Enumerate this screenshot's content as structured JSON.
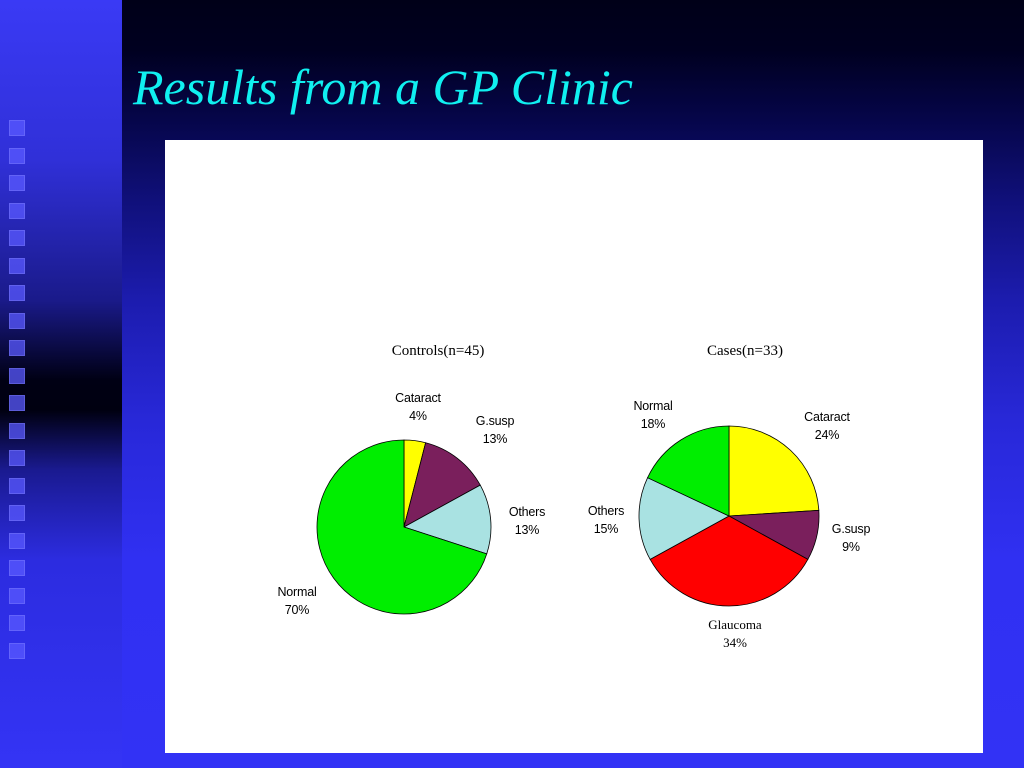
{
  "slide": {
    "title": "Results from a GP Clinic",
    "colors": {
      "title": "#10f0f0",
      "background": "#3232f5",
      "panel": "#ffffff"
    }
  },
  "chart_data": [
    {
      "type": "pie",
      "title": "Controls(n=45)",
      "slices": [
        {
          "label": "Cataract",
          "value": 4,
          "display": "4%",
          "color": "#ffff00"
        },
        {
          "label": "G.susp",
          "value": 13,
          "display": "13%",
          "color": "#7a1f5c"
        },
        {
          "label": "Others",
          "value": 13,
          "display": "13%",
          "color": "#a9e2e2"
        },
        {
          "label": "Normal",
          "value": 70,
          "display": "70%",
          "color": "#00ee00"
        }
      ]
    },
    {
      "type": "pie",
      "title": "Cases(n=33)",
      "slices": [
        {
          "label": "Cataract",
          "value": 24,
          "display": "24%",
          "color": "#ffff00"
        },
        {
          "label": "G.susp",
          "value": 9,
          "display": "9%",
          "color": "#7a1f5c"
        },
        {
          "label": "Glaucoma",
          "value": 34,
          "display": "34%",
          "color": "#ff0000"
        },
        {
          "label": "Others",
          "value": 15,
          "display": "15%",
          "color": "#a9e2e2"
        },
        {
          "label": "Normal",
          "value": 18,
          "display": "18%",
          "color": "#00ee00"
        }
      ]
    }
  ]
}
